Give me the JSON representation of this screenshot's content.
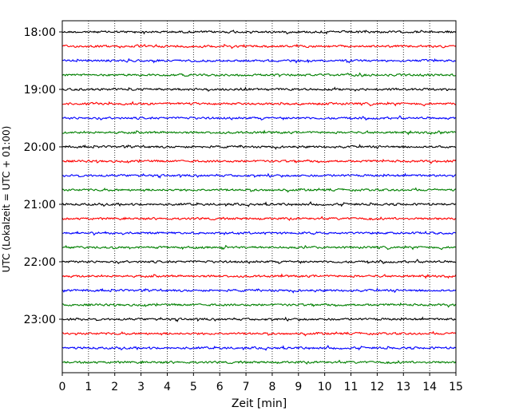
{
  "chart_data": {
    "type": "line",
    "title": "",
    "xlabel": "Zeit  [min]",
    "ylabel": "UTC (Lokalzeit = UTC + 01:00)",
    "xlim": [
      0,
      15
    ],
    "x_ticks": [
      0,
      1,
      2,
      3,
      4,
      5,
      6,
      7,
      8,
      9,
      10,
      11,
      12,
      13,
      14,
      15
    ],
    "x_tick_labels": [
      "0",
      "1",
      "2",
      "3",
      "4",
      "5",
      "6",
      "7",
      "8",
      "9",
      "10",
      "11",
      "12",
      "13",
      "14",
      "15"
    ],
    "y_tick_labels": [
      "18:00",
      "19:00",
      "20:00",
      "21:00",
      "22:00",
      "23:00"
    ],
    "vertical_grid": "dotted",
    "trace_interval_min": 15,
    "trace_colors": [
      "#000000",
      "#ff0000",
      "#0000ff",
      "#008000"
    ],
    "series": [
      {
        "start": "18:00"
      },
      {
        "start": "18:15"
      },
      {
        "start": "18:30"
      },
      {
        "start": "18:45"
      },
      {
        "start": "19:00"
      },
      {
        "start": "19:15"
      },
      {
        "start": "19:30"
      },
      {
        "start": "19:45"
      },
      {
        "start": "20:00"
      },
      {
        "start": "20:15"
      },
      {
        "start": "20:30"
      },
      {
        "start": "20:45"
      },
      {
        "start": "21:00"
      },
      {
        "start": "21:15"
      },
      {
        "start": "21:30"
      },
      {
        "start": "21:45"
      },
      {
        "start": "22:00"
      },
      {
        "start": "22:15"
      },
      {
        "start": "22:30"
      },
      {
        "start": "22:45"
      },
      {
        "start": "23:00"
      },
      {
        "start": "23:15"
      },
      {
        "start": "23:30"
      },
      {
        "start": "23:45"
      }
    ]
  }
}
